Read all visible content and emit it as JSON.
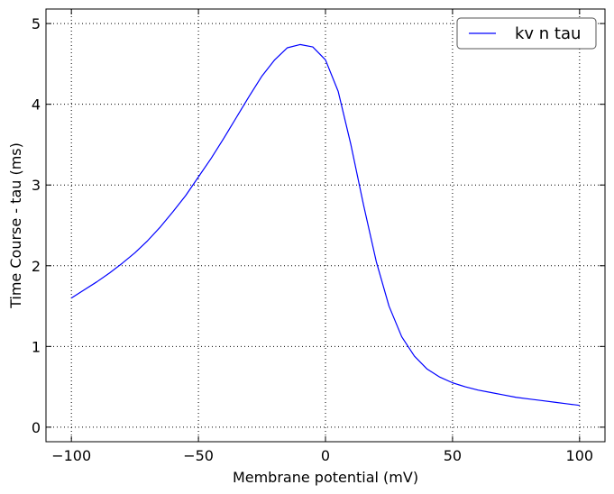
{
  "chart_data": {
    "type": "line",
    "xlabel": "Membrane potential (mV)",
    "ylabel": "Time Course - tau (ms)",
    "xlim": [
      -110,
      110
    ],
    "ylim": [
      -0.18,
      5.18
    ],
    "xticks": [
      -100,
      -50,
      0,
      50,
      100
    ],
    "xtick_labels": [
      "−100",
      "−50",
      "0",
      "50",
      "100"
    ],
    "yticks": [
      0,
      1,
      2,
      3,
      4,
      5
    ],
    "ytick_labels": [
      "0",
      "1",
      "2",
      "3",
      "4",
      "5"
    ],
    "grid": true,
    "legend_position": "top-right",
    "series": [
      {
        "name": "kv n tau",
        "color": "#0000ff",
        "x": [
          -100,
          -95,
          -90,
          -85,
          -80,
          -75,
          -70,
          -65,
          -60,
          -55,
          -50,
          -45,
          -40,
          -35,
          -30,
          -25,
          -20,
          -15,
          -10,
          -5,
          0,
          5,
          10,
          15,
          20,
          25,
          30,
          35,
          40,
          45,
          50,
          55,
          60,
          65,
          70,
          75,
          80,
          85,
          90,
          95,
          100
        ],
        "values": [
          1.6,
          1.7,
          1.8,
          1.91,
          2.03,
          2.16,
          2.31,
          2.48,
          2.67,
          2.87,
          3.1,
          3.33,
          3.58,
          3.84,
          4.1,
          4.35,
          4.55,
          4.7,
          4.74,
          4.71,
          4.55,
          4.16,
          3.5,
          2.75,
          2.05,
          1.5,
          1.12,
          0.88,
          0.72,
          0.62,
          0.55,
          0.5,
          0.46,
          0.43,
          0.4,
          0.37,
          0.35,
          0.33,
          0.31,
          0.29,
          0.27
        ]
      }
    ]
  }
}
